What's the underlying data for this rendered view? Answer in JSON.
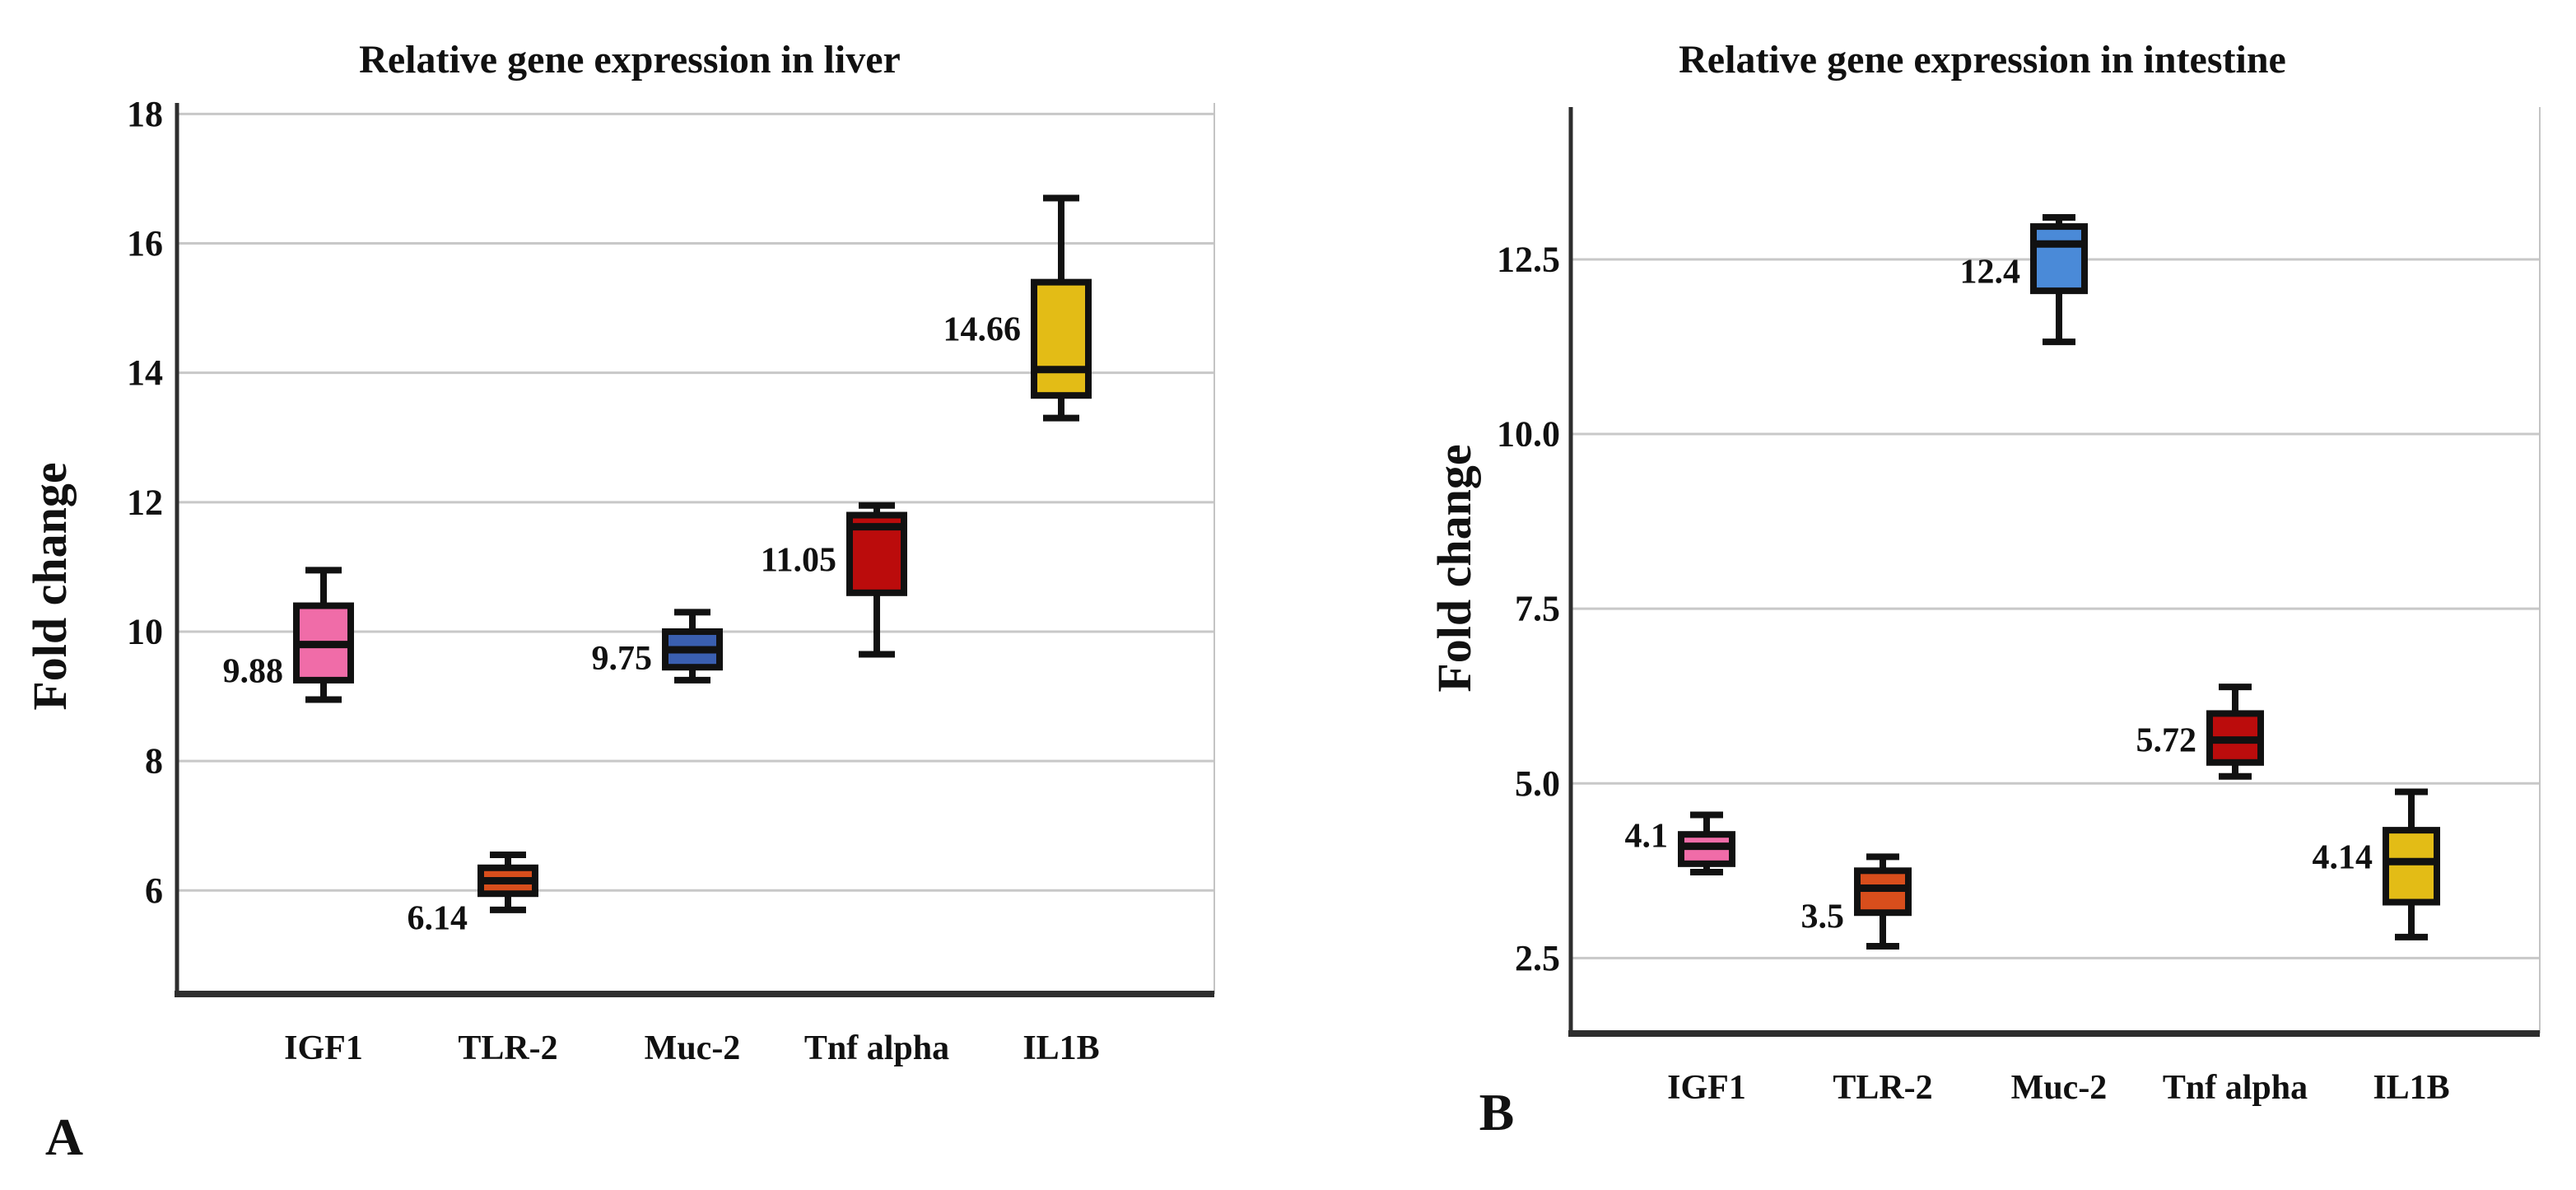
{
  "page": {
    "background": "#ffffff"
  },
  "chart_data": [
    {
      "type": "box",
      "panel_letter": "A",
      "title": "Relative gene expression in liver",
      "ylabel": "Fold change",
      "categories": [
        "IGF1",
        "TLR-2",
        "Muc-2",
        "Tnf alpha",
        "IL1B"
      ],
      "yticks": [
        18,
        16,
        14,
        12,
        10,
        8,
        6
      ],
      "ytick_labels": [
        "18",
        "16",
        "14",
        "12",
        "10",
        "8",
        "6"
      ],
      "ylim": [
        4.4,
        18.17
      ],
      "grid": true,
      "legend": "none",
      "series": [
        {
          "category": "IGF1",
          "mean_label": "9.88",
          "color": "#f06ca8",
          "whisker_low": 8.95,
          "q1": 9.25,
          "median": 9.8,
          "q3": 10.4,
          "whisker_high": 10.95
        },
        {
          "category": "TLR-2",
          "mean_label": "6.14",
          "color": "#d84e1c",
          "whisker_low": 5.7,
          "q1": 5.95,
          "median": 6.15,
          "q3": 6.35,
          "whisker_high": 6.55
        },
        {
          "category": "Muc-2",
          "mean_label": "9.75",
          "color": "#3a5fb0",
          "whisker_low": 9.25,
          "q1": 9.45,
          "median": 9.72,
          "q3": 10.0,
          "whisker_high": 10.3
        },
        {
          "category": "Tnf alpha",
          "mean_label": "11.05",
          "color": "#bb0c0c",
          "whisker_low": 9.65,
          "q1": 10.6,
          "median": 11.62,
          "q3": 11.8,
          "whisker_high": 11.95
        },
        {
          "category": "IL1B",
          "mean_label": "14.66",
          "color": "#e3bc16",
          "whisker_low": 13.3,
          "q1": 13.65,
          "median": 14.05,
          "q3": 15.4,
          "whisker_high": 16.7
        }
      ]
    },
    {
      "type": "box",
      "panel_letter": "B",
      "title": "Relative gene expression in intestine",
      "ylabel": "Fold change",
      "categories": [
        "IGF1",
        "TLR-2",
        "Muc-2",
        "Tnf alpha",
        "IL1B"
      ],
      "yticks": [
        12.5,
        10.0,
        7.5,
        5.0,
        2.5
      ],
      "ytick_labels": [
        "12.5",
        "10.0",
        "7.5",
        "5.0",
        "2.5"
      ],
      "ylim": [
        1.42,
        14.68
      ],
      "grid": true,
      "legend": "none",
      "series": [
        {
          "category": "IGF1",
          "mean_label": "4.1",
          "color": "#f06ca8",
          "whisker_low": 3.73,
          "q1": 3.85,
          "median": 4.1,
          "q3": 4.27,
          "whisker_high": 4.55
        },
        {
          "category": "TLR-2",
          "mean_label": "3.5",
          "color": "#d84e1c",
          "whisker_low": 2.67,
          "q1": 3.15,
          "median": 3.5,
          "q3": 3.75,
          "whisker_high": 3.95
        },
        {
          "category": "Muc-2",
          "mean_label": "12.4",
          "color": "#4a8ad8",
          "whisker_low": 11.32,
          "q1": 12.05,
          "median": 12.72,
          "q3": 12.97,
          "whisker_high": 13.1
        },
        {
          "category": "Tnf alpha",
          "mean_label": "5.72",
          "color": "#bb0c0c",
          "whisker_low": 5.1,
          "q1": 5.3,
          "median": 5.62,
          "q3": 6.0,
          "whisker_high": 6.38
        },
        {
          "category": "IL1B",
          "mean_label": "4.14",
          "color": "#e3bc16",
          "whisker_low": 2.8,
          "q1": 3.3,
          "median": 3.88,
          "q3": 4.33,
          "whisker_high": 4.88
        }
      ]
    }
  ]
}
